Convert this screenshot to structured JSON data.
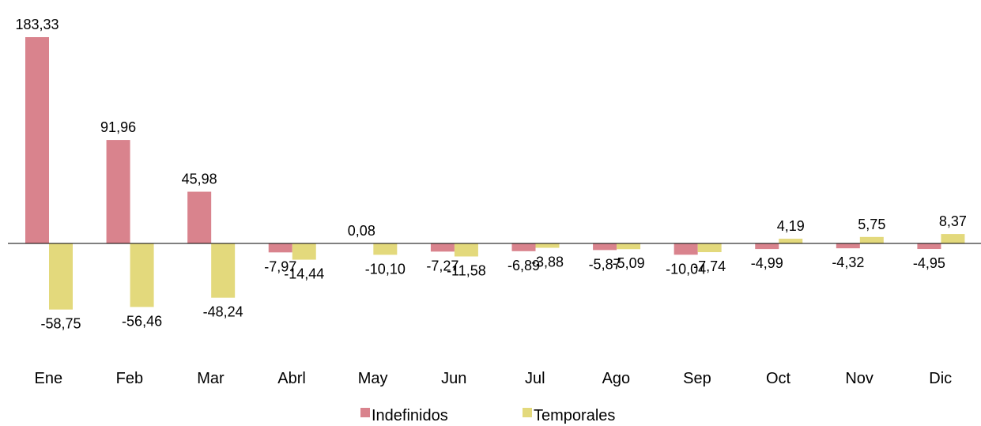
{
  "chart_data": {
    "type": "bar",
    "categories": [
      "Ene",
      "Feb",
      "Mar",
      "Abrl",
      "May",
      "Jun",
      "Jul",
      "Ago",
      "Sep",
      "Oct",
      "Nov",
      "Dic"
    ],
    "series": [
      {
        "name": "Indefinidos",
        "color": "#d9838d",
        "values": [
          183.33,
          91.96,
          45.98,
          -7.97,
          0.08,
          -7.27,
          -6.89,
          -5.87,
          -10.04,
          -4.99,
          -4.32,
          -4.95
        ],
        "labels": [
          "183,33",
          "91,96",
          "45,98",
          "-7,97",
          "0,08",
          "-7,27",
          "-6,89",
          "-5,87",
          "-10,04",
          "-4,99",
          "-4,32",
          "-4,95"
        ]
      },
      {
        "name": "Temporales",
        "color": "#e3d97c",
        "values": [
          -58.75,
          -56.46,
          -48.24,
          -14.44,
          -10.1,
          -11.58,
          -3.88,
          -5.09,
          -7.74,
          4.19,
          5.75,
          8.37
        ],
        "labels": [
          "-58,75",
          "-56,46",
          "-48,24",
          "-14,44",
          "-10,10",
          "-11,58",
          "-3,88",
          "-5,09",
          "-7,74",
          "4,19",
          "5,75",
          "8,37"
        ]
      }
    ],
    "ylim": [
      -70,
      195
    ],
    "grid": false,
    "legend_position": "bottom"
  }
}
